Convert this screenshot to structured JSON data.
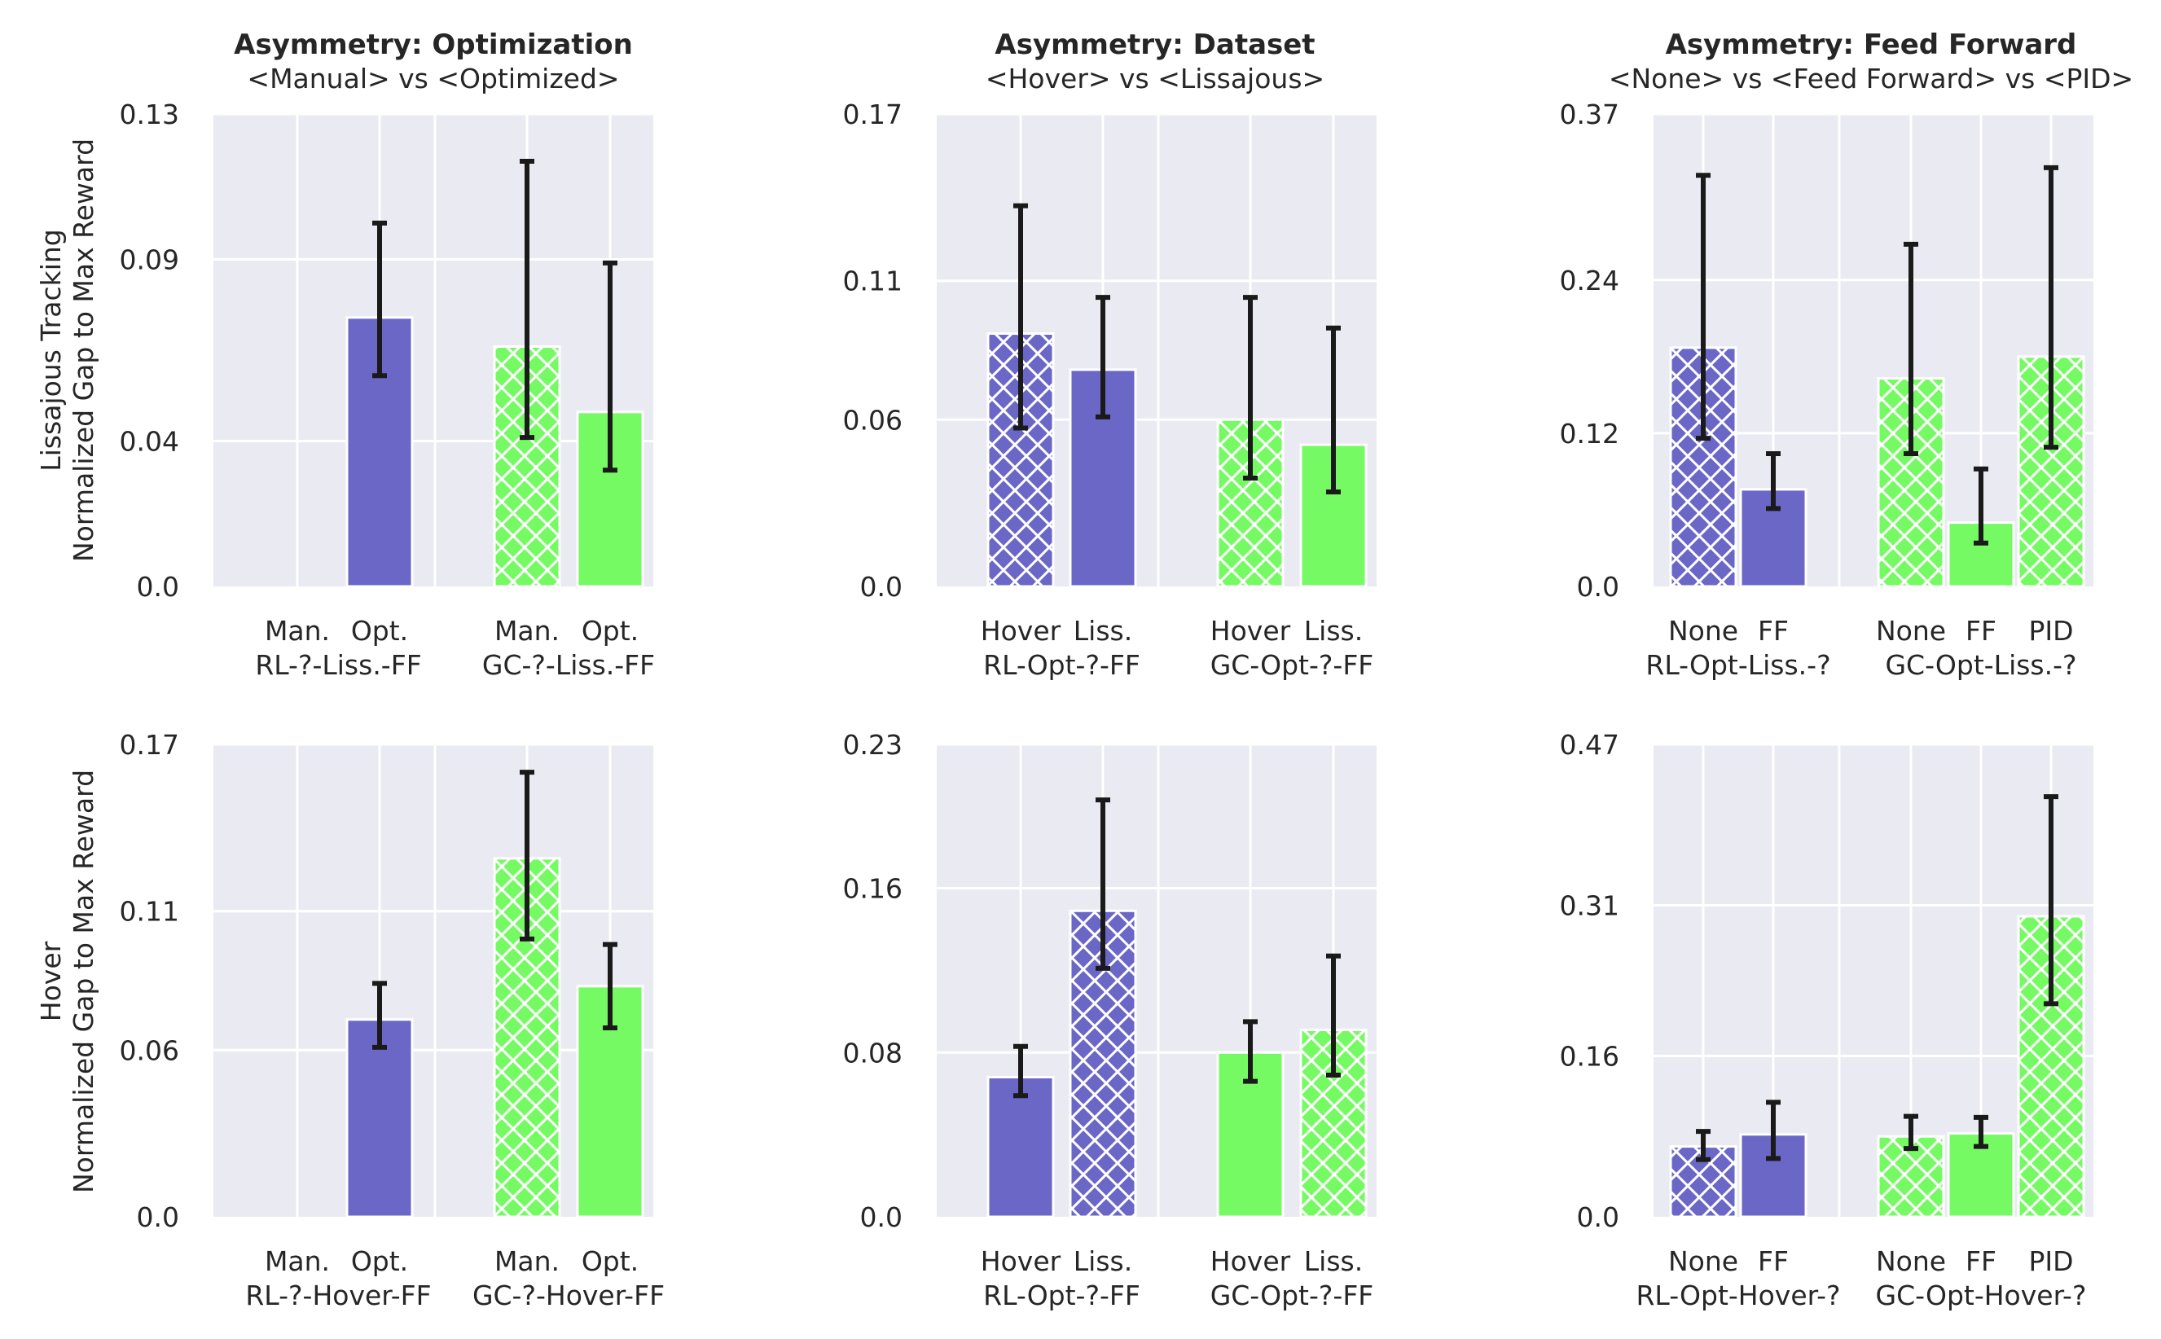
{
  "chart_data": {
    "type": "bar",
    "row_labels": [
      [
        "Lissajous Tracking",
        "Normalized Gap to Max Reward"
      ],
      [
        "Hover",
        "Normalized Gap to Max Reward"
      ]
    ],
    "columns": [
      {
        "title": "Asymmetry: Optimization",
        "subtitle": "<Manual> vs <Optimized>"
      },
      {
        "title": "Asymmetry: Dataset",
        "subtitle": "<Hover> vs <Lissajous>"
      },
      {
        "title": "Asymmetry: Feed Forward",
        "subtitle": "<None> vs <Feed Forward> vs <PID>"
      }
    ],
    "colors": {
      "rl": "#6a67c7",
      "gc": "#76fa64"
    },
    "panels": [
      {
        "row": 0,
        "col": 0,
        "ylim": [
          0,
          0.13
        ],
        "yticks": [
          0.0,
          0.04,
          0.09,
          0.13
        ],
        "ytick_labels": [
          "0.0",
          "0.04",
          "0.09",
          "0.13"
        ],
        "groups": [
          {
            "label": "RL-?-Liss.-FF",
            "bars": [
              {
                "label": "Man.",
                "value": null,
                "err": null,
                "hatched": false,
                "series": "rl"
              },
              {
                "label": "Opt.",
                "value": 0.074,
                "err": [
                  0.058,
                  0.1
                ],
                "hatched": false,
                "series": "rl"
              }
            ]
          },
          {
            "label": "GC-?-Liss.-FF",
            "bars": [
              {
                "label": "Man.",
                "value": 0.066,
                "err": [
                  0.041,
                  0.117
                ],
                "hatched": true,
                "series": "gc"
              },
              {
                "label": "Opt.",
                "value": 0.048,
                "err": [
                  0.032,
                  0.089
                ],
                "hatched": false,
                "series": "gc"
              }
            ]
          }
        ]
      },
      {
        "row": 0,
        "col": 1,
        "ylim": [
          0,
          0.17
        ],
        "yticks": [
          0.0,
          0.06,
          0.11,
          0.17
        ],
        "ytick_labels": [
          "0.0",
          "0.06",
          "0.11",
          "0.17"
        ],
        "groups": [
          {
            "label": "RL-Opt-?-FF",
            "bars": [
              {
                "label": "Hover",
                "value": 0.091,
                "err": [
                  0.057,
                  0.137
                ],
                "hatched": true,
                "series": "rl"
              },
              {
                "label": "Liss.",
                "value": 0.078,
                "err": [
                  0.061,
                  0.104
                ],
                "hatched": false,
                "series": "rl"
              }
            ]
          },
          {
            "label": "GC-Opt-?-FF",
            "bars": [
              {
                "label": "Hover",
                "value": 0.06,
                "err": [
                  0.039,
                  0.104
                ],
                "hatched": true,
                "series": "gc"
              },
              {
                "label": "Liss.",
                "value": 0.051,
                "err": [
                  0.034,
                  0.093
                ],
                "hatched": false,
                "series": "gc"
              }
            ]
          }
        ]
      },
      {
        "row": 0,
        "col": 2,
        "ylim": [
          0,
          0.37
        ],
        "yticks": [
          0.0,
          0.12,
          0.24,
          0.37
        ],
        "ytick_labels": [
          "0.0",
          "0.12",
          "0.24",
          "0.37"
        ],
        "groups": [
          {
            "label": "RL-Opt-Liss.-?",
            "bars": [
              {
                "label": "None",
                "value": 0.187,
                "err": [
                  0.116,
                  0.322
                ],
                "hatched": true,
                "series": "rl"
              },
              {
                "label": "FF",
                "value": 0.076,
                "err": [
                  0.061,
                  0.104
                ],
                "hatched": false,
                "series": "rl"
              }
            ]
          },
          {
            "label": "GC-Opt-Liss.-?",
            "bars": [
              {
                "label": "None",
                "value": 0.163,
                "err": [
                  0.104,
                  0.268
                ],
                "hatched": true,
                "series": "gc"
              },
              {
                "label": "FF",
                "value": 0.05,
                "err": [
                  0.034,
                  0.092
                ],
                "hatched": false,
                "series": "gc"
              },
              {
                "label": "PID",
                "value": 0.18,
                "err": [
                  0.109,
                  0.328
                ],
                "hatched": true,
                "series": "gc"
              }
            ]
          }
        ]
      },
      {
        "row": 1,
        "col": 0,
        "ylim": [
          0,
          0.17
        ],
        "yticks": [
          0.0,
          0.06,
          0.11,
          0.17
        ],
        "ytick_labels": [
          "0.0",
          "0.06",
          "0.11",
          "0.17"
        ],
        "groups": [
          {
            "label": "RL-?-Hover-FF",
            "bars": [
              {
                "label": "Man.",
                "value": null,
                "err": null,
                "hatched": false,
                "series": "rl"
              },
              {
                "label": "Opt.",
                "value": 0.071,
                "err": [
                  0.061,
                  0.084
                ],
                "hatched": false,
                "series": "rl"
              }
            ]
          },
          {
            "label": "GC-?-Hover-FF",
            "bars": [
              {
                "label": "Man.",
                "value": 0.129,
                "err": [
                  0.1,
                  0.16
                ],
                "hatched": true,
                "series": "gc"
              },
              {
                "label": "Opt.",
                "value": 0.083,
                "err": [
                  0.068,
                  0.098
                ],
                "hatched": false,
                "series": "gc"
              }
            ]
          }
        ]
      },
      {
        "row": 1,
        "col": 1,
        "ylim": [
          0,
          0.23
        ],
        "yticks": [
          0.0,
          0.08,
          0.16,
          0.23
        ],
        "ytick_labels": [
          "0.0",
          "0.08",
          "0.16",
          "0.23"
        ],
        "groups": [
          {
            "label": "RL-Opt-?-FF",
            "bars": [
              {
                "label": "Hover",
                "value": 0.068,
                "err": [
                  0.059,
                  0.083
                ],
                "hatched": false,
                "series": "rl"
              },
              {
                "label": "Liss.",
                "value": 0.149,
                "err": [
                  0.121,
                  0.203
                ],
                "hatched": true,
                "series": "rl"
              }
            ]
          },
          {
            "label": "GC-Opt-?-FF",
            "bars": [
              {
                "label": "Hover",
                "value": 0.08,
                "err": [
                  0.066,
                  0.095
                ],
                "hatched": false,
                "series": "gc"
              },
              {
                "label": "Liss.",
                "value": 0.091,
                "err": [
                  0.069,
                  0.127
                ],
                "hatched": true,
                "series": "gc"
              }
            ]
          }
        ]
      },
      {
        "row": 1,
        "col": 2,
        "ylim": [
          0,
          0.47
        ],
        "yticks": [
          0.0,
          0.16,
          0.31,
          0.47
        ],
        "ytick_labels": [
          "0.0",
          "0.16",
          "0.31",
          "0.47"
        ],
        "groups": [
          {
            "label": "RL-Opt-Hover-?",
            "bars": [
              {
                "label": "None",
                "value": 0.07,
                "err": [
                  0.057,
                  0.085
                ],
                "hatched": true,
                "series": "rl"
              },
              {
                "label": "FF",
                "value": 0.082,
                "err": [
                  0.058,
                  0.114
                ],
                "hatched": false,
                "series": "rl"
              }
            ]
          },
          {
            "label": "GC-Opt-Hover-?",
            "bars": [
              {
                "label": "None",
                "value": 0.08,
                "err": [
                  0.068,
                  0.1
                ],
                "hatched": true,
                "series": "gc"
              },
              {
                "label": "FF",
                "value": 0.083,
                "err": [
                  0.07,
                  0.099
                ],
                "hatched": false,
                "series": "gc"
              },
              {
                "label": "PID",
                "value": 0.299,
                "err": [
                  0.212,
                  0.418
                ],
                "hatched": true,
                "series": "gc"
              }
            ]
          }
        ]
      }
    ]
  }
}
